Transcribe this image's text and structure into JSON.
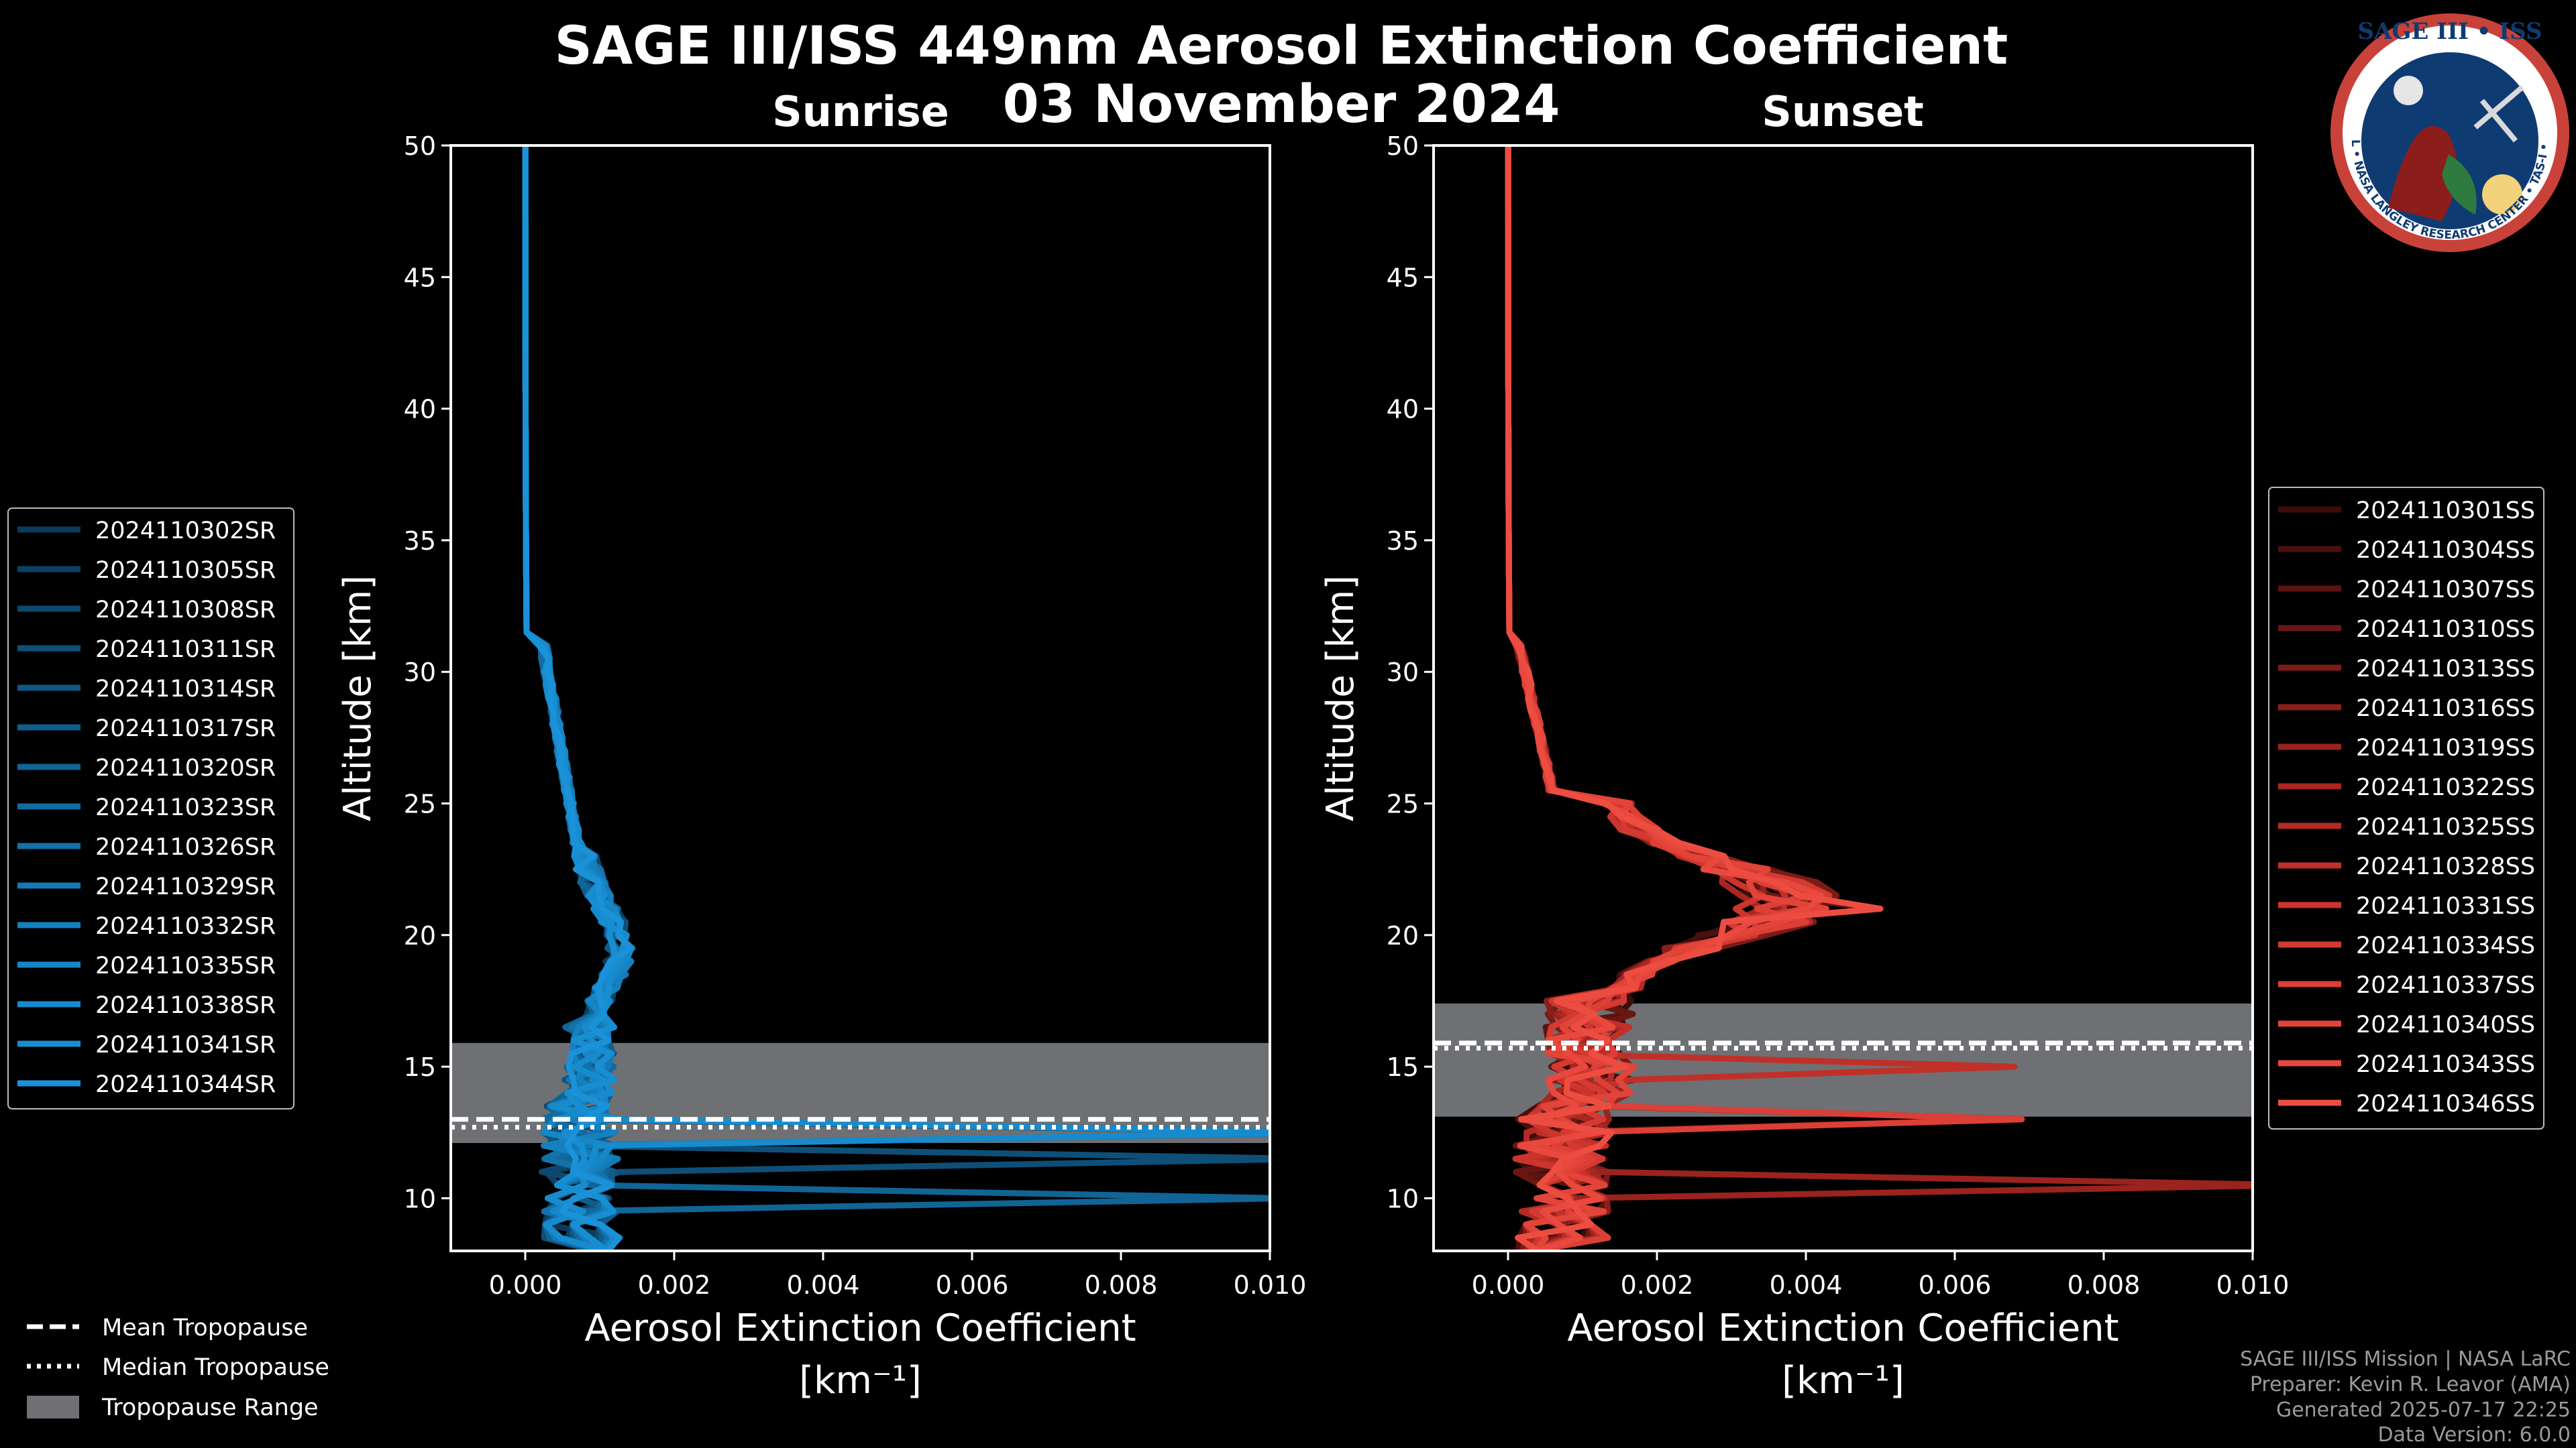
{
  "title": "SAGE III/ISS 449nm Aerosol Extinction Coefficient",
  "date": "03 November 2024",
  "logo": {
    "top_text": "SAGE III • ISS",
    "ring_text": "BALL • NASA LANGLEY RESEARCH CENTER • TAS-I • ESA",
    "colors": {
      "ring": "#c8423a",
      "inner": "#0f3b73",
      "text": "#ffffff"
    }
  },
  "colors": {
    "background": "#000000",
    "tropopause_range": "#6e7073",
    "sunrise_base": "#1b8fd6",
    "sunset_base": "#e8473c"
  },
  "chart_data": [
    {
      "type": "line",
      "panel": "Sunrise",
      "xlabel": "Aerosol Extinction Coefficient",
      "xlabel_units": "[km⁻¹]",
      "ylabel": "Altitude [km]",
      "xlim": [
        -0.001,
        0.01
      ],
      "ylim": [
        8,
        50
      ],
      "xticks": [
        "0.000",
        "0.002",
        "0.004",
        "0.006",
        "0.008",
        "0.010"
      ],
      "xtick_values": [
        0,
        0.002,
        0.004,
        0.006,
        0.008,
        0.01
      ],
      "yticks": [
        10,
        15,
        20,
        25,
        30,
        35,
        40,
        45,
        50
      ],
      "tropopause": {
        "range": [
          12.1,
          15.9
        ],
        "mean": 13.0,
        "median": 12.7
      },
      "legend": "left",
      "series": [
        {
          "name": "2024110302SR",
          "color": "#0b3a5a"
        },
        {
          "name": "2024110305SR",
          "color": "#0c4164"
        },
        {
          "name": "2024110308SR",
          "color": "#0d486e"
        },
        {
          "name": "2024110311SR",
          "color": "#0e4f78"
        },
        {
          "name": "2024110314SR",
          "color": "#0f5682"
        },
        {
          "name": "2024110317SR",
          "color": "#105d8c"
        },
        {
          "name": "2024110320SR",
          "color": "#116496"
        },
        {
          "name": "2024110323SR",
          "color": "#126ba0"
        },
        {
          "name": "2024110326SR",
          "color": "#1372aa"
        },
        {
          "name": "2024110329SR",
          "color": "#1479b4"
        },
        {
          "name": "2024110332SR",
          "color": "#1580be"
        },
        {
          "name": "2024110335SR",
          "color": "#1686c6"
        },
        {
          "name": "2024110338SR",
          "color": "#178bcd"
        },
        {
          "name": "2024110341SR",
          "color": "#188ed2"
        },
        {
          "name": "2024110344SR",
          "color": "#1b91d8"
        }
      ]
    },
    {
      "type": "line",
      "panel": "Sunset",
      "xlabel": "Aerosol Extinction Coefficient",
      "xlabel_units": "[km⁻¹]",
      "ylabel": "Altitude [km]",
      "xlim": [
        -0.001,
        0.01
      ],
      "ylim": [
        8,
        50
      ],
      "xticks": [
        "0.000",
        "0.002",
        "0.004",
        "0.006",
        "0.008",
        "0.010"
      ],
      "xtick_values": [
        0,
        0.002,
        0.004,
        0.006,
        0.008,
        0.01
      ],
      "yticks": [
        10,
        15,
        20,
        25,
        30,
        35,
        40,
        45,
        50
      ],
      "tropopause": {
        "range": [
          13.1,
          17.4
        ],
        "mean": 15.9,
        "median": 15.7
      },
      "legend": "right",
      "series": [
        {
          "name": "2024110301SS",
          "color": "#3a0d0b"
        },
        {
          "name": "2024110304SS",
          "color": "#4a100e"
        },
        {
          "name": "2024110307SS",
          "color": "#5a1411"
        },
        {
          "name": "2024110310SS",
          "color": "#6a1714"
        },
        {
          "name": "2024110313SS",
          "color": "#7a1b17"
        },
        {
          "name": "2024110316SS",
          "color": "#8a1f1a"
        },
        {
          "name": "2024110319SS",
          "color": "#9a231d"
        },
        {
          "name": "2024110322SS",
          "color": "#a82720"
        },
        {
          "name": "2024110325SS",
          "color": "#b52b24"
        },
        {
          "name": "2024110328SS",
          "color": "#c13028"
        },
        {
          "name": "2024110331SS",
          "color": "#cb352d"
        },
        {
          "name": "2024110334SS",
          "color": "#d43a31"
        },
        {
          "name": "2024110337SS",
          "color": "#dc3f35"
        },
        {
          "name": "2024110340SS",
          "color": "#e24439"
        },
        {
          "name": "2024110343SS",
          "color": "#e8483d"
        },
        {
          "name": "2024110346SS",
          "color": "#ed4d41"
        }
      ]
    }
  ],
  "tropopause_legend": {
    "mean": "Mean Tropopause",
    "median": "Median Tropopause",
    "range": "Tropopause Range"
  },
  "credits": [
    "SAGE III/ISS Mission | NASA LaRC",
    "Preparer: Kevin R. Leavor (AMA)",
    "Generated 2025-07-17 22:25",
    "Data Version: 6.0.0"
  ]
}
